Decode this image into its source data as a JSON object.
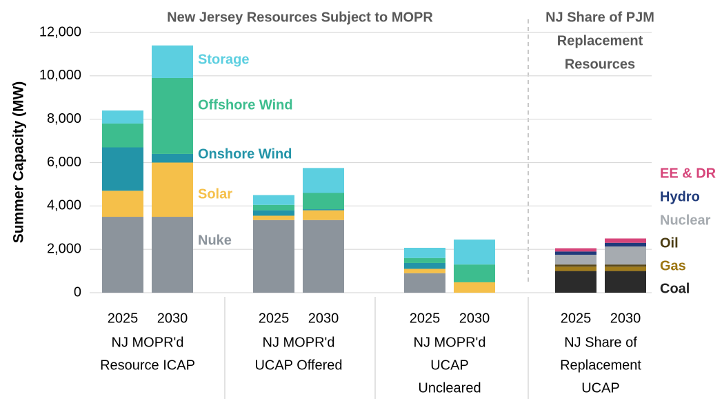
{
  "chart_data": {
    "type": "stacked_bar",
    "y_label": "Summer Capacity (MW)",
    "annotations": [
      {
        "lines": [
          "New Jersey Resources Subject to MOPR"
        ]
      },
      {
        "lines": [
          "NJ Share of PJM",
          "Replacement",
          "Resources"
        ]
      }
    ],
    "categories": [
      "2025",
      "2030",
      "2025",
      "2030",
      "2025",
      "2030",
      "2025",
      "2030"
    ],
    "group_labels": [
      [
        "NJ MOPR'd",
        "Resource ICAP"
      ],
      [
        "NJ MOPR'd",
        "UCAP Offered"
      ],
      [
        "NJ MOPR'd",
        "UCAP",
        "Uncleared"
      ],
      [
        "NJ Share of",
        "Replacement",
        "UCAP"
      ]
    ],
    "series": [
      {
        "name": "Nuke",
        "color": "#8c949c",
        "values": [
          3500,
          3500,
          3350,
          3350,
          900,
          0,
          null,
          null
        ]
      },
      {
        "name": "Solar",
        "color": "#f5c04a",
        "values": [
          1200,
          2500,
          200,
          450,
          200,
          480,
          null,
          null
        ]
      },
      {
        "name": "Onshore Wind",
        "color": "#2394a8",
        "values": [
          2000,
          400,
          250,
          50,
          270,
          0,
          null,
          null
        ]
      },
      {
        "name": "Offshore Wind",
        "color": "#3dbd8e",
        "values": [
          1100,
          3500,
          250,
          750,
          230,
          820,
          null,
          null
        ]
      },
      {
        "name": "Storage",
        "color": "#5ccfe0",
        "values": [
          600,
          1500,
          450,
          1150,
          470,
          1150,
          null,
          null
        ]
      },
      {
        "name": "Coal",
        "color": "#2b2b2b",
        "values": [
          null,
          null,
          null,
          null,
          null,
          null,
          1000,
          1000
        ]
      },
      {
        "name": "Gas",
        "color": "#a07c1c",
        "values": [
          null,
          null,
          null,
          null,
          null,
          null,
          200,
          200
        ]
      },
      {
        "name": "Oil",
        "color": "#5a4a1e",
        "values": [
          null,
          null,
          null,
          null,
          null,
          null,
          100,
          100
        ]
      },
      {
        "name": "Nuclear",
        "color": "#a6abb0",
        "values": [
          null,
          null,
          null,
          null,
          null,
          null,
          450,
          830
        ]
      },
      {
        "name": "Hydro",
        "color": "#1f3a7a",
        "values": [
          null,
          null,
          null,
          null,
          null,
          null,
          150,
          170
        ]
      },
      {
        "name": "EE & DR",
        "color": "#d6457a",
        "values": [
          null,
          null,
          null,
          null,
          null,
          null,
          150,
          200
        ]
      }
    ],
    "ylim": [
      0,
      12000
    ],
    "yticks": [
      0,
      {
        "value": 2000,
        "label": "2,000"
      },
      {
        "value": 4000,
        "label": "4,000"
      },
      {
        "value": 6000,
        "label": "6,000"
      },
      {
        "value": 8000,
        "label": "8,000"
      },
      {
        "value": 10000,
        "label": "10,000"
      },
      {
        "value": 12000,
        "label": "12,000"
      }
    ],
    "grid": true
  }
}
